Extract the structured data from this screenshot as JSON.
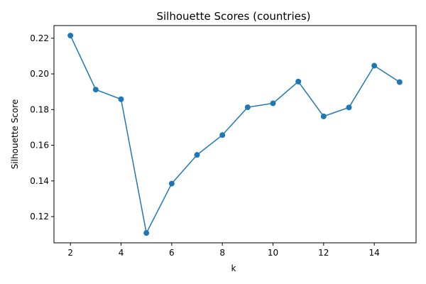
{
  "chart_data": {
    "type": "line",
    "title": "Silhouette Scores (countries)",
    "xlabel": "k",
    "ylabel": "Silhouette Score",
    "x": [
      2,
      3,
      4,
      5,
      6,
      7,
      8,
      9,
      10,
      11,
      12,
      13,
      14,
      15
    ],
    "series": [
      {
        "values": [
          0.2215,
          0.1912,
          0.1858,
          0.1108,
          0.1385,
          0.1546,
          0.1657,
          0.1813,
          0.1835,
          0.1957,
          0.1762,
          0.1812,
          0.2046,
          0.1954
        ],
        "color": "#1f77b4"
      }
    ],
    "xticks": [
      2,
      4,
      6,
      8,
      10,
      12,
      14
    ],
    "yticks": [
      0.12,
      0.14,
      0.16,
      0.18,
      0.2,
      0.22
    ],
    "xtick_labels": [
      "2",
      "4",
      "6",
      "8",
      "10",
      "12",
      "14"
    ],
    "ytick_labels": [
      "0.12",
      "0.14",
      "0.16",
      "0.18",
      "0.20",
      "0.22"
    ],
    "xlim": [
      1.35,
      15.65
    ],
    "ylim": [
      0.1053,
      0.2271
    ],
    "marker": "circle",
    "grid": false,
    "legend": "none"
  }
}
